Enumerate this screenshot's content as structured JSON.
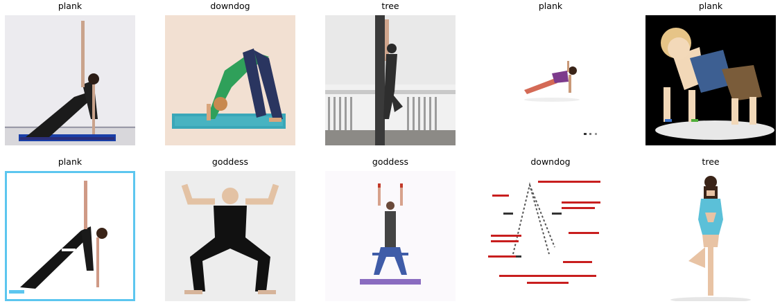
{
  "titles": [
    "plank",
    "downdog",
    "tree",
    "plank",
    "plank",
    "plank",
    "goddess",
    "goddess",
    "downdog",
    "tree"
  ]
}
